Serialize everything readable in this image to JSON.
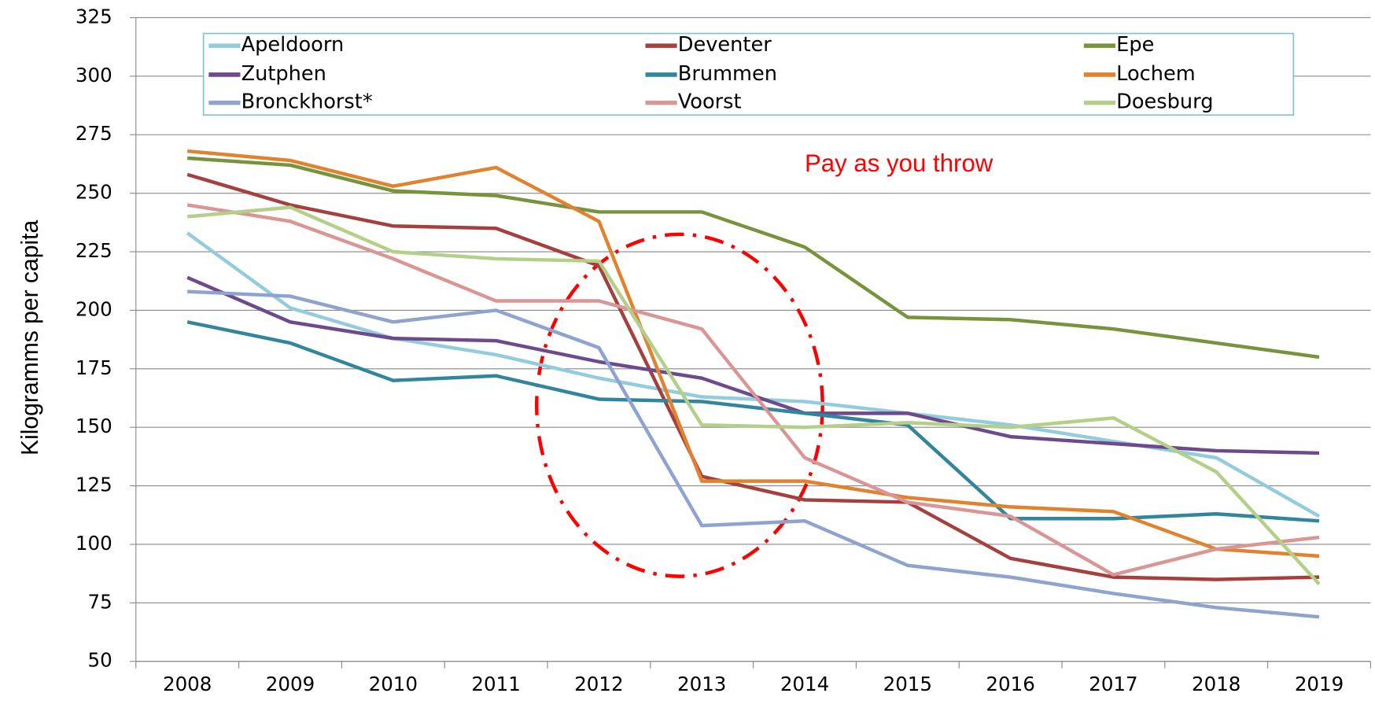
{
  "chart_data": {
    "type": "line",
    "ylabel": "Kilogramms per capita",
    "annotation": "Pay as you throw",
    "categories": [
      "2008",
      "2009",
      "2010",
      "2011",
      "2012",
      "2013",
      "2014",
      "2015",
      "2016",
      "2017",
      "2018",
      "2019"
    ],
    "ylim": [
      50,
      325
    ],
    "yticks": [
      50,
      75,
      100,
      125,
      150,
      175,
      200,
      225,
      250,
      275,
      300,
      325
    ],
    "grid": true,
    "legend": "top",
    "series": [
      {
        "name": "Apeldoorn",
        "color": "#93cddd",
        "values": [
          233,
          201,
          188,
          181,
          171,
          163,
          161,
          156,
          151,
          144,
          137,
          112
        ]
      },
      {
        "name": "Deventer",
        "color": "#a5403f",
        "values": [
          258,
          245,
          236,
          235,
          219,
          129,
          119,
          118,
          94,
          86,
          85,
          86
        ]
      },
      {
        "name": "Epe",
        "color": "#77933c",
        "values": [
          265,
          262,
          251,
          249,
          242,
          242,
          227,
          197,
          196,
          192,
          186,
          180
        ]
      },
      {
        "name": "Zutphen",
        "color": "#6c4a8c",
        "values": [
          214,
          195,
          188,
          187,
          178,
          171,
          156,
          156,
          146,
          143,
          140,
          139
        ]
      },
      {
        "name": "Brummen",
        "color": "#31859c",
        "values": [
          195,
          186,
          170,
          172,
          162,
          161,
          156,
          151,
          111,
          111,
          113,
          110
        ]
      },
      {
        "name": "Lochem",
        "color": "#e0822e",
        "values": [
          268,
          264,
          253,
          261,
          238,
          127,
          127,
          120,
          116,
          114,
          98,
          95
        ]
      },
      {
        "name": "Bronckhorst*",
        "color": "#8ea4cf",
        "values": [
          208,
          206,
          195,
          200,
          184,
          108,
          110,
          91,
          86,
          79,
          73,
          69
        ]
      },
      {
        "name": "Voorst",
        "color": "#d99694",
        "values": [
          245,
          238,
          222,
          204,
          204,
          192,
          137,
          118,
          112,
          87,
          98,
          103
        ]
      },
      {
        "name": "Doesburg",
        "color": "#b3cf88",
        "values": [
          240,
          244,
          225,
          222,
          221,
          151,
          150,
          152,
          150,
          154,
          131,
          83
        ]
      }
    ]
  }
}
